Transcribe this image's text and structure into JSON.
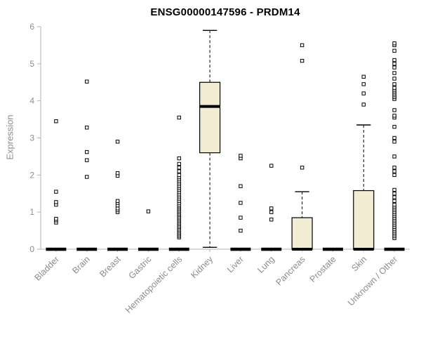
{
  "chart_data": {
    "type": "boxplot",
    "title": "ENSG00000147596 - PRDM14",
    "ylabel": "Expression",
    "xlabel": "",
    "ylim": [
      0,
      6
    ],
    "yticks": [
      0,
      1,
      2,
      3,
      4,
      5,
      6
    ],
    "grid": false,
    "box_fill": "#f2ecd3",
    "box_stroke": "#000000",
    "outlier_fill": "#ffffff",
    "axis_color": "#b3b3b3",
    "label_color": "#8c8c8c",
    "title_color": "#000000",
    "categories": [
      "Bladder",
      "Brain",
      "Breast",
      "Gastric",
      "Hematopoietic cells",
      "Kidney",
      "Liver",
      "Lung",
      "Pancreas",
      "Prostate",
      "Skin",
      "Unknown / Other"
    ],
    "boxes": [
      {
        "category": "Bladder",
        "low": 0,
        "q1": 0,
        "median": 0,
        "q3": 0,
        "high": 0,
        "outliers": [
          0.72,
          0.78,
          0.82,
          1.2,
          1.27,
          1.55,
          3.45
        ]
      },
      {
        "category": "Brain",
        "low": 0,
        "q1": 0,
        "median": 0,
        "q3": 0,
        "high": 0,
        "outliers": [
          1.95,
          2.4,
          2.62,
          3.28,
          4.52
        ]
      },
      {
        "category": "Breast",
        "low": 0,
        "q1": 0,
        "median": 0,
        "q3": 0,
        "high": 0,
        "outliers": [
          1.0,
          1.05,
          1.1,
          1.18,
          1.25,
          1.3,
          1.98,
          2.05,
          2.9
        ]
      },
      {
        "category": "Gastric",
        "low": 0,
        "q1": 0,
        "median": 0,
        "q3": 0,
        "high": 0,
        "outliers": [
          1.02
        ]
      },
      {
        "category": "Hematopoietic cells",
        "low": 0,
        "q1": 0,
        "median": 0,
        "q3": 0,
        "high": 0,
        "outliers": [
          0.32,
          0.36,
          0.4,
          0.44,
          0.48,
          0.52,
          0.56,
          0.6,
          0.64,
          0.68,
          0.72,
          0.76,
          0.8,
          0.84,
          0.88,
          0.92,
          0.96,
          1.0,
          1.04,
          1.08,
          1.12,
          1.16,
          1.2,
          1.25,
          1.3,
          1.35,
          1.4,
          1.45,
          1.5,
          1.55,
          1.6,
          1.65,
          1.7,
          1.75,
          1.8,
          1.85,
          1.9,
          1.95,
          2.0,
          2.1,
          2.2,
          2.3,
          2.45,
          3.55
        ]
      },
      {
        "category": "Kidney",
        "low": 0.05,
        "q1": 2.6,
        "median": 3.85,
        "q3": 4.5,
        "high": 5.9,
        "outliers": []
      },
      {
        "category": "Liver",
        "low": 0,
        "q1": 0,
        "median": 0,
        "q3": 0,
        "high": 0,
        "outliers": [
          0.5,
          0.85,
          1.25,
          1.7,
          2.45,
          2.52
        ]
      },
      {
        "category": "Lung",
        "low": 0,
        "q1": 0,
        "median": 0,
        "q3": 0,
        "high": 0,
        "outliers": [
          0.8,
          1.0,
          1.1,
          2.25
        ]
      },
      {
        "category": "Pancreas",
        "low": 0,
        "q1": 0,
        "median": 0,
        "q3": 0.85,
        "high": 1.55,
        "outliers": [
          2.2,
          5.08,
          5.5
        ]
      },
      {
        "category": "Prostate",
        "low": 0,
        "q1": 0,
        "median": 0,
        "q3": 0,
        "high": 0,
        "outliers": []
      },
      {
        "category": "Skin",
        "low": 0,
        "q1": 0,
        "median": 0,
        "q3": 1.58,
        "high": 3.35,
        "outliers": [
          3.9,
          4.2,
          4.45,
          4.65
        ]
      },
      {
        "category": "Unknown / Other",
        "low": 0,
        "q1": 0,
        "median": 0,
        "q3": 0,
        "high": 0,
        "outliers": [
          0.3,
          0.35,
          0.4,
          0.45,
          0.5,
          0.55,
          0.6,
          0.65,
          0.7,
          0.75,
          0.8,
          0.85,
          0.9,
          0.95,
          1.0,
          1.05,
          1.1,
          1.15,
          1.2,
          1.3,
          1.4,
          1.5,
          1.6,
          2.0,
          2.1,
          2.2,
          2.5,
          2.9,
          3.0,
          3.3,
          3.55,
          3.6,
          3.75,
          4.05,
          4.1,
          4.15,
          4.2,
          4.25,
          4.3,
          4.35,
          4.45,
          4.6,
          4.75,
          4.9,
          5.0,
          5.1,
          5.35,
          5.5,
          5.55
        ]
      }
    ]
  }
}
